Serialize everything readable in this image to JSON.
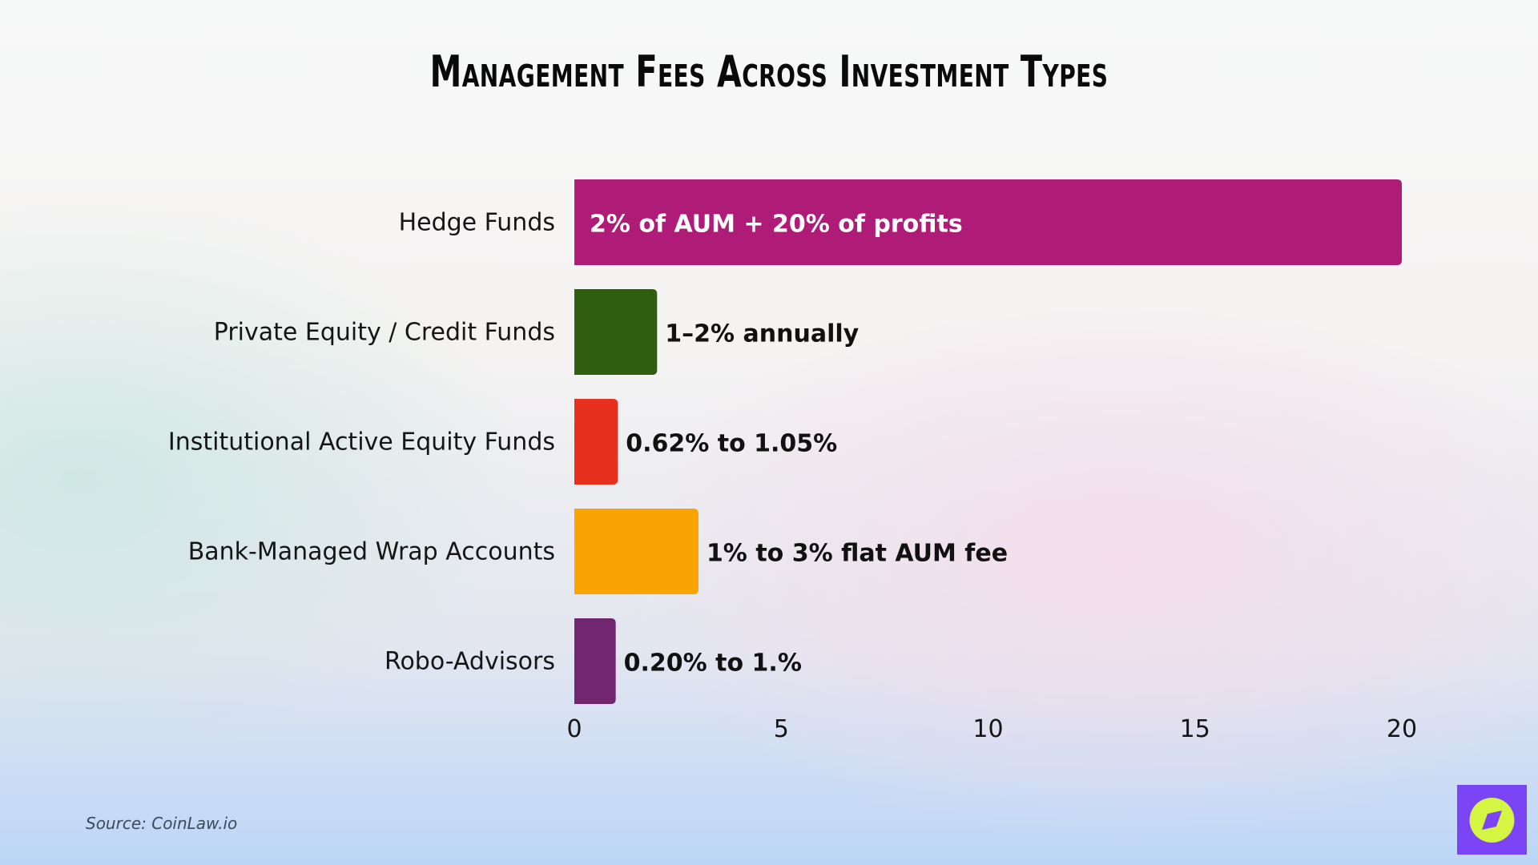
{
  "chart_data": {
    "type": "bar",
    "orientation": "horizontal",
    "title": "Management Fees Across Investment Types",
    "categories": [
      "Hedge Funds",
      "Private Equity / Credit Funds",
      "Institutional Active Equity Funds",
      "Bank-Managed Wrap Accounts",
      "Robo-Advisors"
    ],
    "values": [
      20,
      2,
      1.05,
      3,
      1
    ],
    "data_labels": [
      "2% of AUM + 20% of profits",
      "1–2% annually",
      "0.62% to 1.05%",
      "1% to 3% flat AUM fee",
      "0.20% to 1.%"
    ],
    "colors": [
      "#ae1c78",
      "#2f5e10",
      "#e8301f",
      "#f9a404",
      "#722670"
    ],
    "xlim": [
      0,
      20
    ],
    "xticks": [
      "0",
      "5",
      "10",
      "15",
      "20"
    ],
    "grid": false,
    "xlabel": "",
    "ylabel": ""
  },
  "source": "Source: CoinLaw.io",
  "logo": {
    "icon": "compass-icon",
    "bg": "#7b45f5",
    "fg": "#d4f542"
  }
}
